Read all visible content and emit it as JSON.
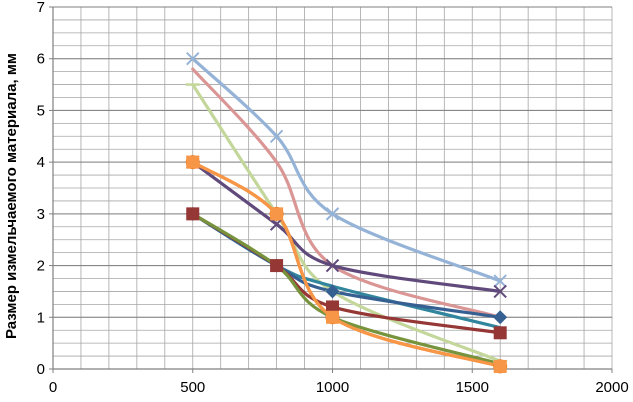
{
  "chart_data": {
    "type": "line",
    "title": "",
    "xlabel": "",
    "ylabel": "Размер измельчаемого материала, мм",
    "xlim": [
      0,
      2000
    ],
    "ylim": [
      0,
      7
    ],
    "x_ticks": [
      0,
      500,
      1000,
      1500,
      2000
    ],
    "y_ticks": [
      0,
      1,
      2,
      3,
      4,
      5,
      6,
      7
    ],
    "x_tick_labels": [
      "0",
      "500",
      "1000",
      "1500",
      "2000"
    ],
    "y_tick_labels": [
      "0",
      "1",
      "2",
      "3",
      "4",
      "5",
      "6",
      "7"
    ],
    "grid": true,
    "legend": "none",
    "series": [
      {
        "color": "#95b3d7",
        "marker": "x",
        "smooth": true,
        "x": [
          500,
          800,
          1000,
          1600
        ],
        "y": [
          6.0,
          4.5,
          3.0,
          1.7
        ]
      },
      {
        "color": "#da9694",
        "marker": "none",
        "smooth": true,
        "x": [
          500,
          800,
          1000,
          1600
        ],
        "y": [
          5.8,
          4.0,
          2.0,
          1.0
        ]
      },
      {
        "color": "#c4d79b",
        "marker": "dash",
        "smooth": true,
        "x": [
          500,
          800,
          1000,
          1600
        ],
        "y": [
          5.5,
          3.0,
          1.5,
          0.15
        ]
      },
      {
        "color": "#604a7b",
        "marker": "x",
        "smooth": true,
        "x": [
          500,
          800,
          1000,
          1600
        ],
        "y": [
          4.0,
          2.8,
          2.0,
          1.5
        ]
      },
      {
        "color": "#e46c0a",
        "marker": "circle",
        "smooth": true,
        "x": [
          500,
          800,
          1000,
          1600
        ],
        "y": [
          4.0,
          3.0,
          1.0,
          0.05
        ]
      },
      {
        "color": "#31859c",
        "marker": "none",
        "smooth": true,
        "x": [
          500,
          800,
          1000,
          1600
        ],
        "y": [
          3.0,
          2.0,
          1.6,
          0.8
        ]
      },
      {
        "color": "#376092",
        "marker": "diamond",
        "smooth": true,
        "x": [
          500,
          800,
          1000,
          1600
        ],
        "y": [
          3.0,
          2.0,
          1.5,
          1.0
        ]
      },
      {
        "color": "#953735",
        "marker": "square",
        "smooth": true,
        "x": [
          500,
          800,
          1000,
          1600
        ],
        "y": [
          3.0,
          2.0,
          1.2,
          0.7
        ]
      },
      {
        "color": "#77933c",
        "marker": "none",
        "smooth": true,
        "x": [
          500,
          800,
          1000,
          1600
        ],
        "y": [
          3.0,
          2.0,
          1.0,
          0.1
        ]
      },
      {
        "color": "#f79646",
        "marker": "square",
        "smooth": true,
        "x": [
          500,
          800,
          1000,
          1600
        ],
        "y": [
          4.0,
          3.0,
          1.0,
          0.05
        ]
      }
    ]
  }
}
